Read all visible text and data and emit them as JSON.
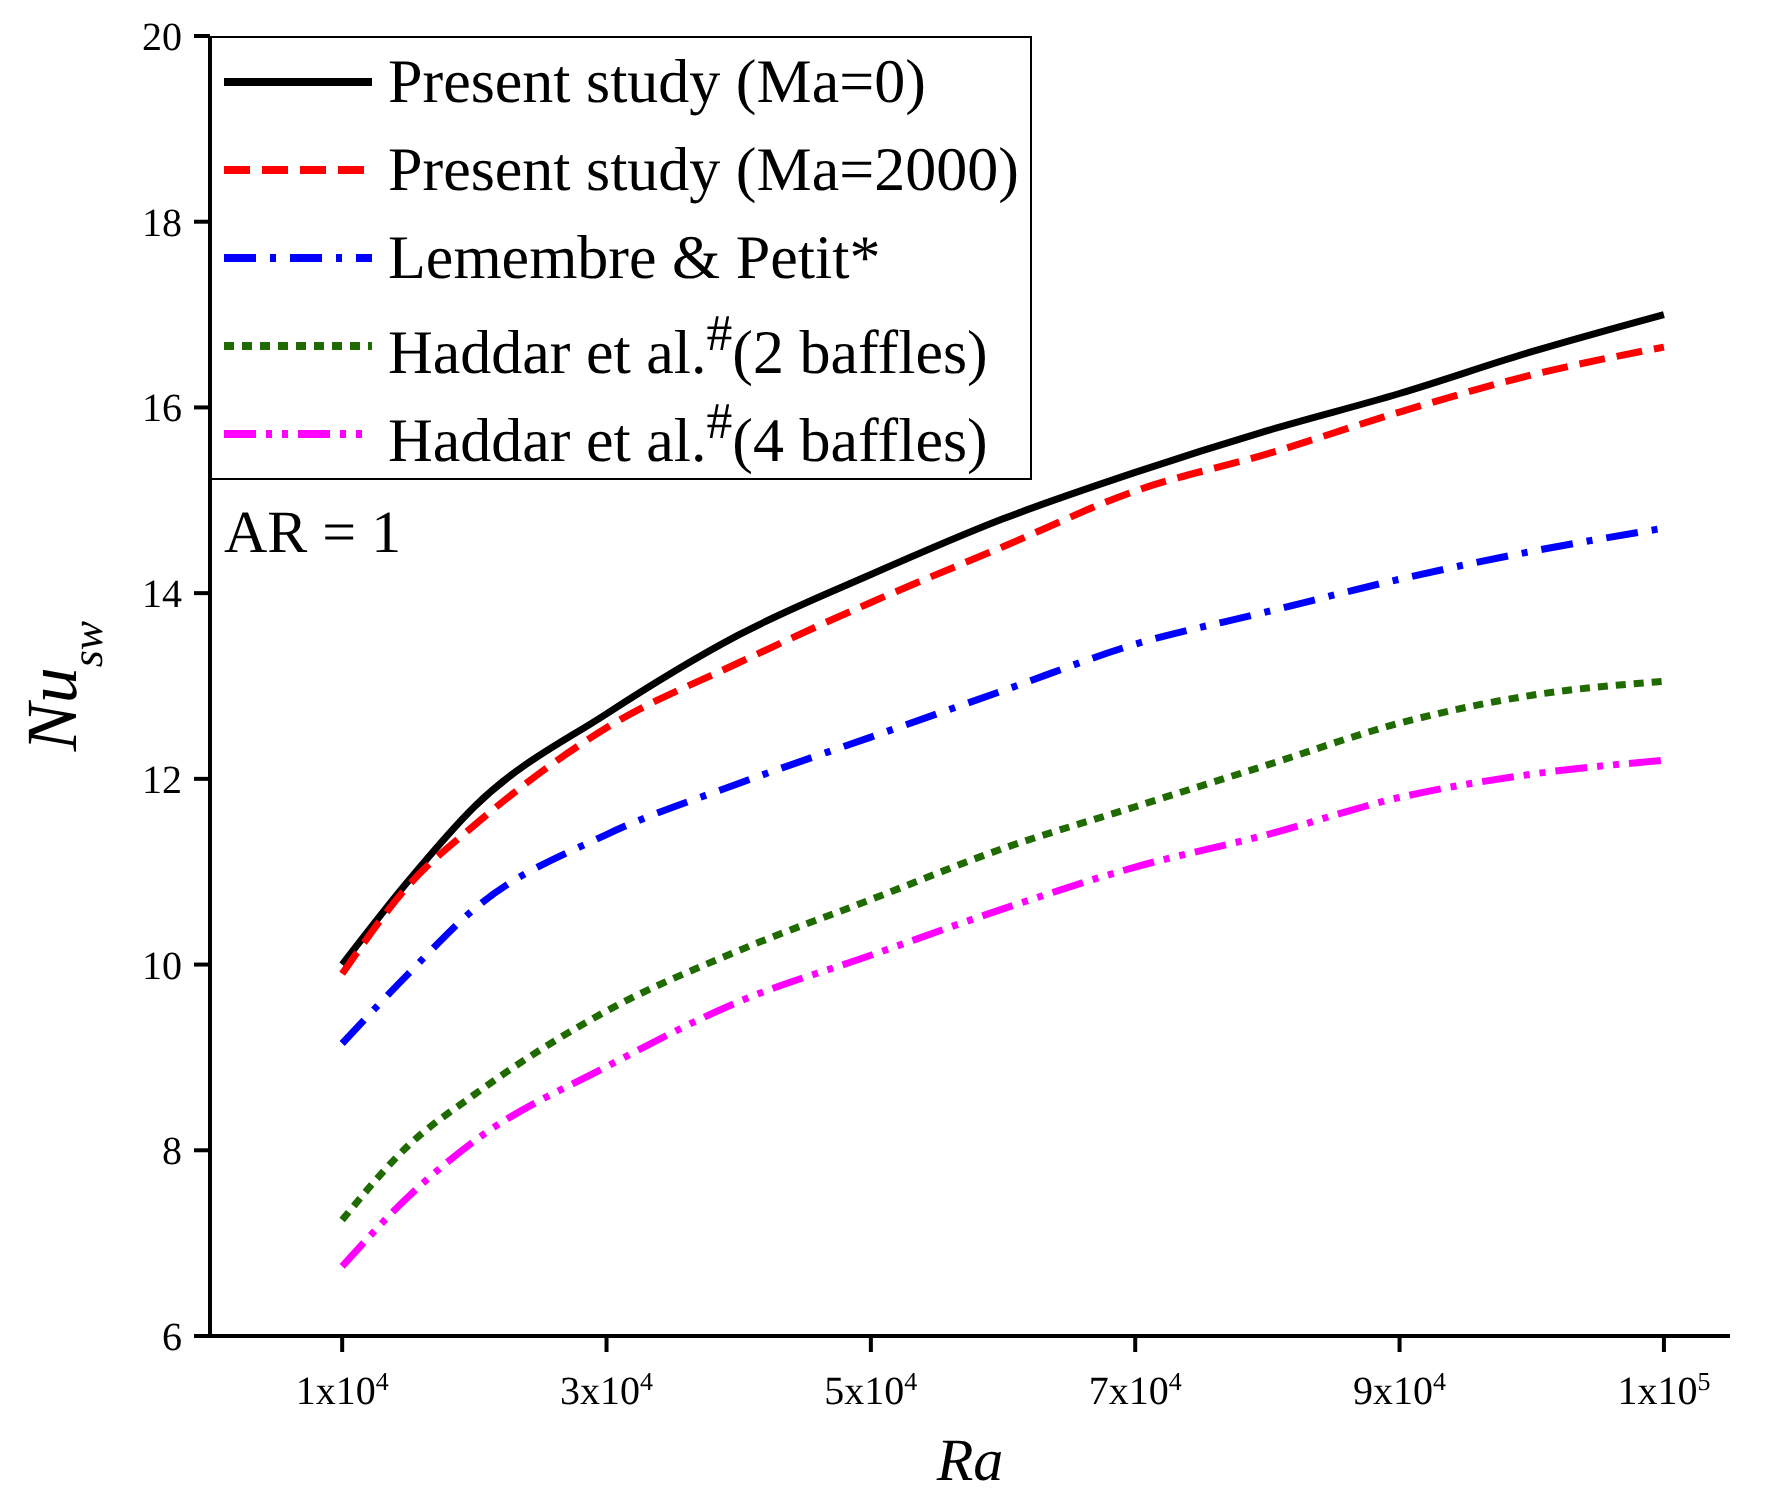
{
  "chart_data": {
    "type": "line",
    "xlabel": "Ra",
    "ylabel": "Nu$_{sw}$",
    "x": [
      10000,
      15000,
      20000,
      30000,
      40000,
      50000,
      60000,
      70000,
      80000,
      90000,
      100000,
      110000
    ],
    "series": [
      {
        "name": "Present study (Ma=0)",
        "color": "#000000",
        "line_style": "solid",
        "values": [
          10.0,
          10.9,
          11.7,
          12.7,
          13.55,
          14.2,
          14.8,
          15.3,
          15.75,
          16.15,
          16.6,
          17.0
        ]
      },
      {
        "name": "Present study (Ma=2000)",
        "color": "#ff0000",
        "line_style": "dashed",
        "values": [
          9.9,
          10.85,
          11.5,
          12.55,
          13.25,
          13.9,
          14.5,
          15.1,
          15.5,
          15.95,
          16.35,
          16.65
        ]
      },
      {
        "name": "Lemembre & Petit*",
        "color": "#0000ff",
        "line_style": "dashdot",
        "values": [
          9.15,
          9.9,
          10.6,
          11.4,
          11.95,
          12.45,
          12.95,
          13.45,
          13.8,
          14.15,
          14.45,
          14.7
        ]
      },
      {
        "name": "Haddar et al.$^{#}$(2 baffles)",
        "color": "#1f6b00",
        "line_style": "dotted",
        "values": [
          7.25,
          8.05,
          8.6,
          9.5,
          10.15,
          10.7,
          11.25,
          11.7,
          12.15,
          12.6,
          12.9,
          13.05
        ]
      },
      {
        "name": "Haddar et al.$^{#}$(4 baffles)",
        "color": "#ff00ff",
        "line_style": "dashdotdot",
        "values": [
          6.75,
          7.5,
          8.1,
          8.9,
          9.6,
          10.1,
          10.6,
          11.05,
          11.4,
          11.8,
          12.05,
          12.2
        ]
      }
    ],
    "xlim": [
      0,
      115000
    ],
    "xticks": [
      {
        "value": 10000,
        "label": "1x10$^{4}$"
      },
      {
        "value": 30000,
        "label": "3x10$^{4}$"
      },
      {
        "value": 50000,
        "label": "5x10$^{4}$"
      },
      {
        "value": 70000,
        "label": "7x10$^{4}$"
      },
      {
        "value": 90000,
        "label": "9x10$^{4}$"
      },
      {
        "value": 110000,
        "label": "1x10$^{5}$"
      }
    ],
    "ylim": [
      6,
      20
    ],
    "yticks": [
      6,
      8,
      10,
      12,
      14,
      16,
      18,
      20
    ],
    "annotations": [
      "AR = 1"
    ],
    "legend": "top left",
    "grid": false,
    "marker": "none"
  }
}
